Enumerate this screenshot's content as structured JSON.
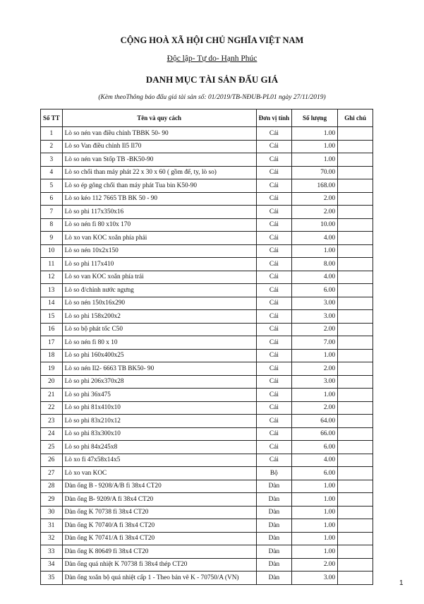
{
  "header": {
    "country": "CỘNG HOÀ XÃ HỘI CHỦ NGHĨA VIỆT NAM",
    "motto": "Độc lập- Tự do- Hạnh Phúc",
    "title": "DANH MỤC TÀI SẢN ĐẤU GIÁ",
    "subtitle": "(Kèm theoThông báo đấu giá tài sản số: 01/2019/TB-NĐUB-PL01 ngày  27/11/2019)"
  },
  "table": {
    "columns": [
      "Số TT",
      "Tên và quy cách",
      "Đơn vị tính",
      "Số lượng",
      "Ghi chú"
    ],
    "rows": [
      [
        "1",
        "Lò so nén van điều chỉnh TBBK 50- 90",
        "Cái",
        "1.00"
      ],
      [
        "2",
        "Lò so Van điều chỉnh Il5 Il70",
        "Cái",
        "1.00"
      ],
      [
        "3",
        "Lò so nén van Stốp TB -BK50-90",
        "Cái",
        "1.00"
      ],
      [
        "4",
        "Lò so chổi than máy phát 22 x 30 x 60 ( gồm đế, ty, lò so)",
        "Cái",
        "70.00"
      ],
      [
        "5",
        "Lò so ép gông chổi than máy phát Tua bin K50-90",
        "Cái",
        "168.00"
      ],
      [
        "6",
        "Lò so kéo 112 7665 TB BK 50 - 90",
        "Cái",
        "2.00"
      ],
      [
        "7",
        "Lò so phi 117x350x16",
        "Cái",
        "2.00"
      ],
      [
        "8",
        "Lò so nén fi 80 x10x 170",
        "Cái",
        "10.00"
      ],
      [
        "9",
        "Lò xo van KOC xoắn phía phải",
        "Cái",
        "4.00"
      ],
      [
        "10",
        "Lò so nén 10x2x150",
        "Cái",
        "1.00"
      ],
      [
        "11",
        "Lò so phi 117x410",
        "Cái",
        "8.00"
      ],
      [
        "12",
        "Lò so van KOC xoắn phía trái",
        "Cái",
        "4.00"
      ],
      [
        "13",
        "Lò so đ/chỉnh nước ngưng",
        "Cái",
        "6.00"
      ],
      [
        "14",
        "Lò so nén 150x16x290",
        "Cái",
        "3.00"
      ],
      [
        "15",
        "Lò so phi 158x200x2",
        "Cái",
        "3.00"
      ],
      [
        "16",
        "Lò so bộ phát tốc C50",
        "Cái",
        "2.00"
      ],
      [
        "17",
        "Lò so nén fi 80 x 10",
        "Cái",
        "7.00"
      ],
      [
        "18",
        "Lò so phi 160x400x25",
        "Cái",
        "1.00"
      ],
      [
        "19",
        "Lò so nén Il2- 6663 TB BK50- 90",
        "Cái",
        "2.00"
      ],
      [
        "20",
        "Lò so phi 206x370x28",
        "Cái",
        "3.00"
      ],
      [
        "21",
        "Lò so phi 36x475",
        "Cái",
        "1.00"
      ],
      [
        "22",
        "Lò so phi 81x410x10",
        "Cái",
        "2.00"
      ],
      [
        "23",
        "Lò so phi 83x210x12",
        "Cái",
        "64.00"
      ],
      [
        "24",
        "Lò so phi 83x300x10",
        "Cái",
        "66.00"
      ],
      [
        "25",
        "Lò so phi 84x245x8",
        "Cái",
        "6.00"
      ],
      [
        "26",
        "Lò xo fi 47x58x14x5",
        "Cái",
        "4.00"
      ],
      [
        "27",
        "Lò xo van KOC",
        "Bộ",
        "6.00"
      ],
      [
        "28",
        "Dàn ống B - 9208/A/B fi 38x4 CT20",
        "Dàn",
        "1.00"
      ],
      [
        "29",
        "Dàn ống B- 9209/A fi 38x4 CT20",
        "Dàn",
        "1.00"
      ],
      [
        "30",
        "Dàn ống K 70738 fi 38x4 CT20",
        "Dàn",
        "1.00"
      ],
      [
        "31",
        "Dàn ống K 70740/A fi 38x4 CT20",
        "Dàn",
        "1.00"
      ],
      [
        "32",
        "Dàn ống K 70741/A fi 38x4 CT20",
        "Dàn",
        "1.00"
      ],
      [
        "33",
        "Dàn ống K 80649 fi 38x4 CT20",
        "Dàn",
        "1.00"
      ],
      [
        "34",
        "Dàn ống quá nhiệt K 70738 fi 38x4 thép CT20",
        "Dàn",
        "2.00"
      ],
      [
        "35",
        "Dàn ống xoắn bộ quá nhiệt cấp 1 - Theo bản vẽ K - 70750/A (VN)",
        "Dàn",
        "3.00"
      ]
    ]
  },
  "footer": {
    "page_number": "1"
  }
}
